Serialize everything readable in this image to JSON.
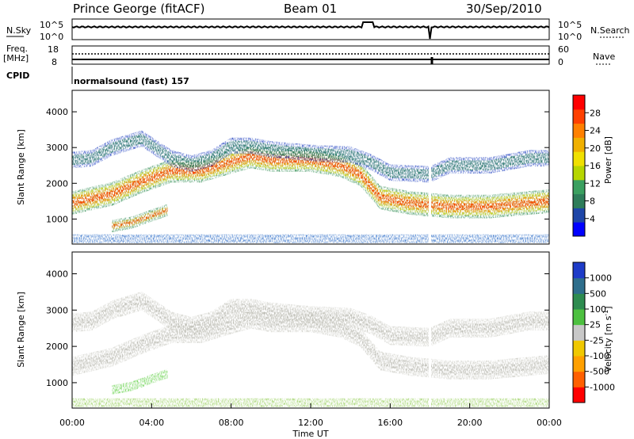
{
  "header": {
    "station": "Prince George (fitACF)",
    "beam": "Beam 01",
    "date": "30/Sep/2010"
  },
  "top_panel": {
    "left_label": "N.Sky",
    "left_ticks": [
      "10^5",
      "10^0"
    ],
    "right_label": "N.Search",
    "right_ticks": [
      "10^5",
      "10^0"
    ]
  },
  "freq_panel": {
    "left_label_1": "Freq.",
    "left_label_2": "[MHz]",
    "left_ticks": [
      "18",
      "8"
    ],
    "right_label": "Nave",
    "right_ticks": [
      "60",
      "0"
    ]
  },
  "cpid": {
    "label": "CPID",
    "text": "normalsound (fast) 157"
  },
  "chart_data": [
    {
      "type": "heatmap",
      "title": "Power",
      "ylabel": "Slant Range [km]",
      "xlabel": "",
      "ylim": [
        300,
        4600
      ],
      "yticks": [
        "1000",
        "2000",
        "3000",
        "4000"
      ],
      "xlim_hours": [
        0,
        24
      ],
      "colorbar": {
        "label": "Power [dB]",
        "ticks": [
          "4",
          "8",
          "12",
          "16",
          "20",
          "24",
          "28"
        ],
        "colors": [
          "#0000ff",
          "#1e46a8",
          "#2e7d5a",
          "#3ba060",
          "#b6d600",
          "#f0e000",
          "#f0b000",
          "#ff8000",
          "#ff4000",
          "#ff0000"
        ]
      },
      "bands": [
        {
          "name": "main",
          "points": [
            [
              0,
              1450
            ],
            [
              2,
              1700
            ],
            [
              3.5,
              2050
            ],
            [
              5,
              2350
            ],
            [
              6.5,
              2350
            ],
            [
              8,
              2600
            ],
            [
              9,
              2750
            ],
            [
              10,
              2650
            ],
            [
              12,
              2650
            ],
            [
              13.5,
              2500
            ],
            [
              14.5,
              2250
            ],
            [
              15.5,
              1600
            ],
            [
              17,
              1450
            ],
            [
              19,
              1350
            ],
            [
              21,
              1350
            ],
            [
              23,
              1450
            ],
            [
              24,
              1500
            ]
          ]
        },
        {
          "name": "upper",
          "points": [
            [
              0,
              2650
            ],
            [
              1,
              2700
            ],
            [
              2,
              3000
            ],
            [
              3.5,
              3250
            ],
            [
              5,
              2700
            ],
            [
              6,
              2550
            ],
            [
              7,
              2700
            ],
            [
              8,
              3050
            ],
            [
              9,
              3050
            ],
            [
              10,
              2950
            ],
            [
              12,
              2850
            ],
            [
              14,
              2800
            ],
            [
              15,
              2600
            ],
            [
              16,
              2300
            ],
            [
              18,
              2250
            ],
            [
              19,
              2500
            ],
            [
              21,
              2500
            ],
            [
              23,
              2700
            ],
            [
              24,
              2700
            ]
          ]
        },
        {
          "name": "lower",
          "points": [
            [
              2,
              800
            ],
            [
              3,
              900
            ],
            [
              4,
              1100
            ],
            [
              4.8,
              1250
            ]
          ]
        },
        {
          "name": "ground",
          "points": [
            [
              0,
              450
            ],
            [
              24,
              450
            ]
          ]
        }
      ]
    },
    {
      "type": "heatmap",
      "title": "Velocity",
      "ylabel": "Slant Range [km]",
      "xlabel": "Time UT",
      "ylim": [
        300,
        4600
      ],
      "yticks": [
        "1000",
        "2000",
        "3000",
        "4000"
      ],
      "xlim_hours": [
        0,
        24
      ],
      "xticks": [
        "00:00",
        "04:00",
        "08:00",
        "12:00",
        "16:00",
        "20:00",
        "00:00"
      ],
      "colorbar": {
        "label": "Velocity [m s^-1]",
        "ticks": [
          "1000",
          "500",
          "100",
          "25",
          "-25",
          "-100",
          "-500",
          "-1000"
        ],
        "colors": [
          "#1e3cc8",
          "#2e6e8c",
          "#2e8c50",
          "#4dc040",
          "#c8c8c8",
          "#f0c800",
          "#ffa000",
          "#ff6000",
          "#ff0000"
        ]
      }
    }
  ]
}
